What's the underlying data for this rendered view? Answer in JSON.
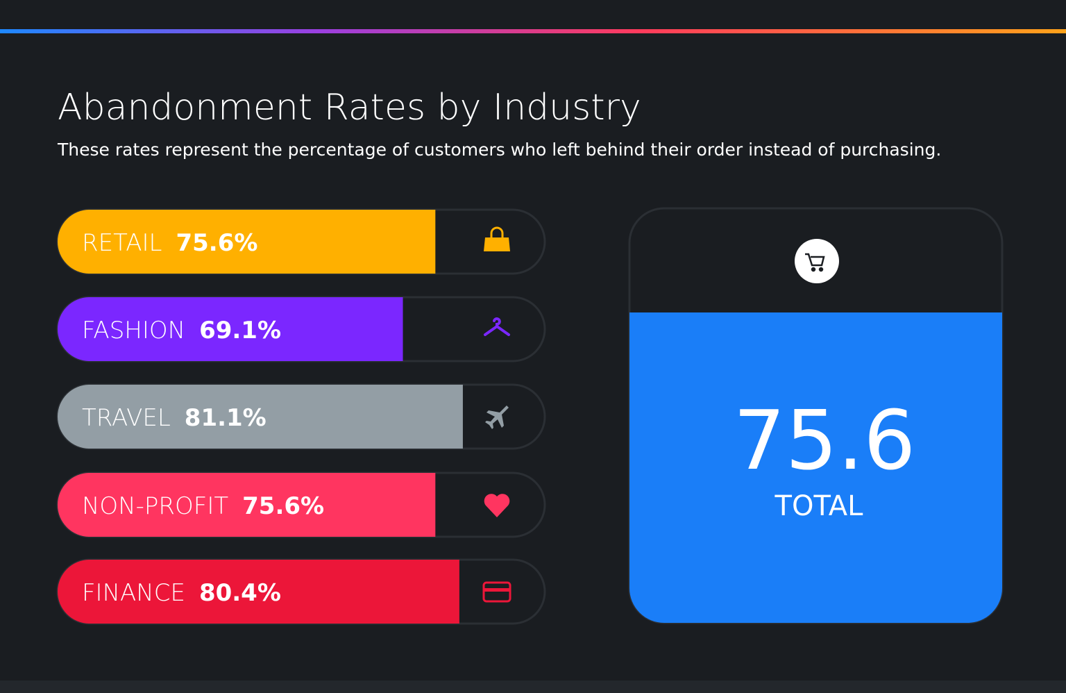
{
  "chart_data": {
    "type": "bar",
    "title": "Abandonment Rates by Industry",
    "subtitle": "These rates represent the percentage of customers who left behind their order instead of purchasing.",
    "categories": [
      "RETAIL",
      "FASHION",
      "TRAVEL",
      "NON-PROFIT",
      "FINANCE"
    ],
    "values": [
      75.6,
      69.1,
      81.1,
      75.6,
      80.4
    ],
    "value_labels": [
      "75.6%",
      "69.1%",
      "81.1%",
      "75.6%",
      "80.4%"
    ],
    "colors": [
      "#ffb000",
      "#7b27ff",
      "#939ea5",
      "#ff3560",
      "#ec1639"
    ],
    "total": {
      "value": 75.6,
      "label": "TOTAL",
      "color": "#1a7ef8"
    }
  }
}
